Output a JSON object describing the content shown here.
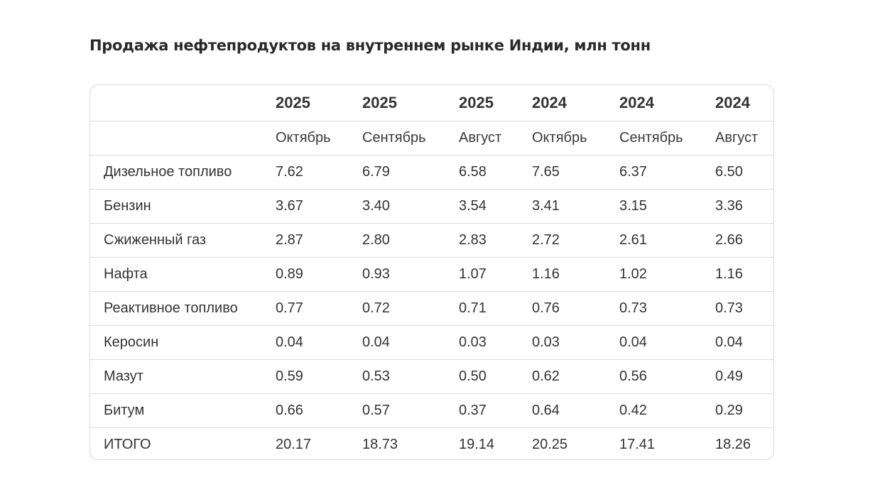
{
  "title": "Продажа нефтепродуктов на внутреннем рынке Индии, млн тонн",
  "table": {
    "years": [
      "2025",
      "2025",
      "2025",
      "2024",
      "2024",
      "2024"
    ],
    "months": [
      "Октябрь",
      "Сентябрь",
      "Август",
      "Октябрь",
      "Сентябрь",
      "Август"
    ],
    "rows": [
      {
        "label": "Дизельное топливо",
        "values": [
          "7.62",
          "6.79",
          "6.58",
          "7.65",
          "6.37",
          "6.50"
        ]
      },
      {
        "label": "Бензин",
        "values": [
          "3.67",
          "3.40",
          "3.54",
          "3.41",
          "3.15",
          "3.36"
        ]
      },
      {
        "label": "Сжиженный газ",
        "values": [
          "2.87",
          "2.80",
          "2.83",
          "2.72",
          "2.61",
          "2.66"
        ]
      },
      {
        "label": "Нафта",
        "values": [
          "0.89",
          "0.93",
          "1.07",
          "1.16",
          "1.02",
          "1.16"
        ]
      },
      {
        "label": "Реактивное топливо",
        "values": [
          "0.77",
          "0.72",
          "0.71",
          "0.76",
          "0.73",
          "0.73"
        ]
      },
      {
        "label": "Керосин",
        "values": [
          "0.04",
          "0.04",
          "0.03",
          "0.03",
          "0.04",
          "0.04"
        ]
      },
      {
        "label": "Мазут",
        "values": [
          "0.59",
          "0.53",
          "0.50",
          "0.62",
          "0.56",
          "0.49"
        ]
      },
      {
        "label": "Битум",
        "values": [
          "0.66",
          "0.57",
          "0.37",
          "0.64",
          "0.42",
          "0.29"
        ]
      },
      {
        "label": "ИТОГО",
        "values": [
          "20.17",
          "18.73",
          "19.14",
          "20.25",
          "17.41",
          "18.26"
        ]
      }
    ]
  }
}
